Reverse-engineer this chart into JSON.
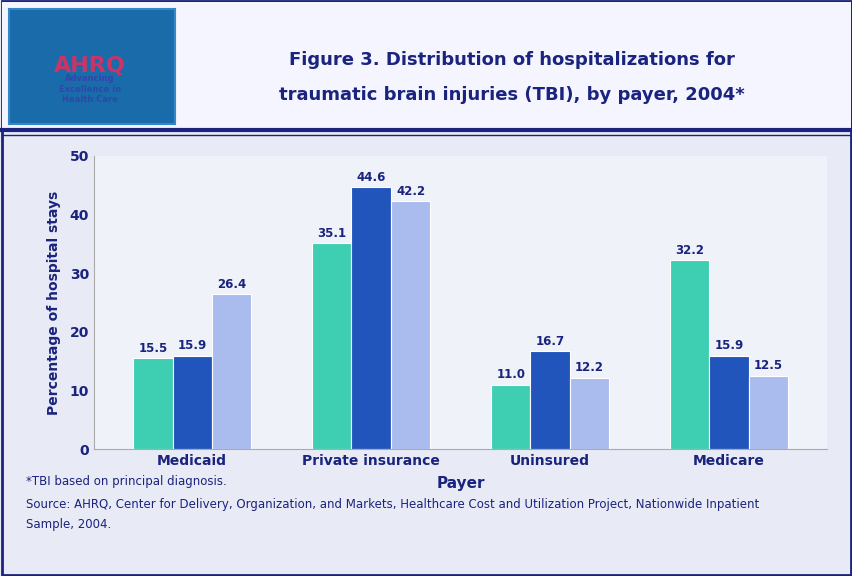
{
  "title_line1": "Figure 3. Distribution of hospitalizations for",
  "title_line2": "traumatic brain injuries (TBI), by payer, 2004*",
  "xlabel": "Payer",
  "ylabel": "Percentage of hospital stays",
  "categories": [
    "Medicaid",
    "Private insurance",
    "Uninsured",
    "Medicare"
  ],
  "series": {
    "Type 1": [
      15.5,
      35.1,
      11.0,
      32.2
    ],
    "Type 2": [
      15.9,
      44.6,
      16.7,
      15.9
    ],
    "Type 3": [
      26.4,
      42.2,
      12.2,
      12.5
    ]
  },
  "colors": {
    "Type 1": "#3ECFB2",
    "Type 2": "#2255BB",
    "Type 3": "#AABBEE"
  },
  "ylim": [
    0,
    50
  ],
  "yticks": [
    0,
    10,
    20,
    30,
    40,
    50
  ],
  "outer_bg": "#E8EAF5",
  "chart_bg": "#F0F2FA",
  "header_bg": "#FFFFFF",
  "title_color": "#1A237E",
  "axis_label_color": "#1A237E",
  "tick_label_color": "#1A237E",
  "value_label_color": "#1A237E",
  "border_color": "#1A237E",
  "footnote_line1": "*TBI based on principal diagnosis.",
  "footnote_line2": "Source: AHRQ, Center for Delivery, Organization, and Markets, Healthcare Cost and Utilization Project, Nationwide Inpatient",
  "footnote_line3": "Sample, 2004.",
  "bar_width": 0.22
}
